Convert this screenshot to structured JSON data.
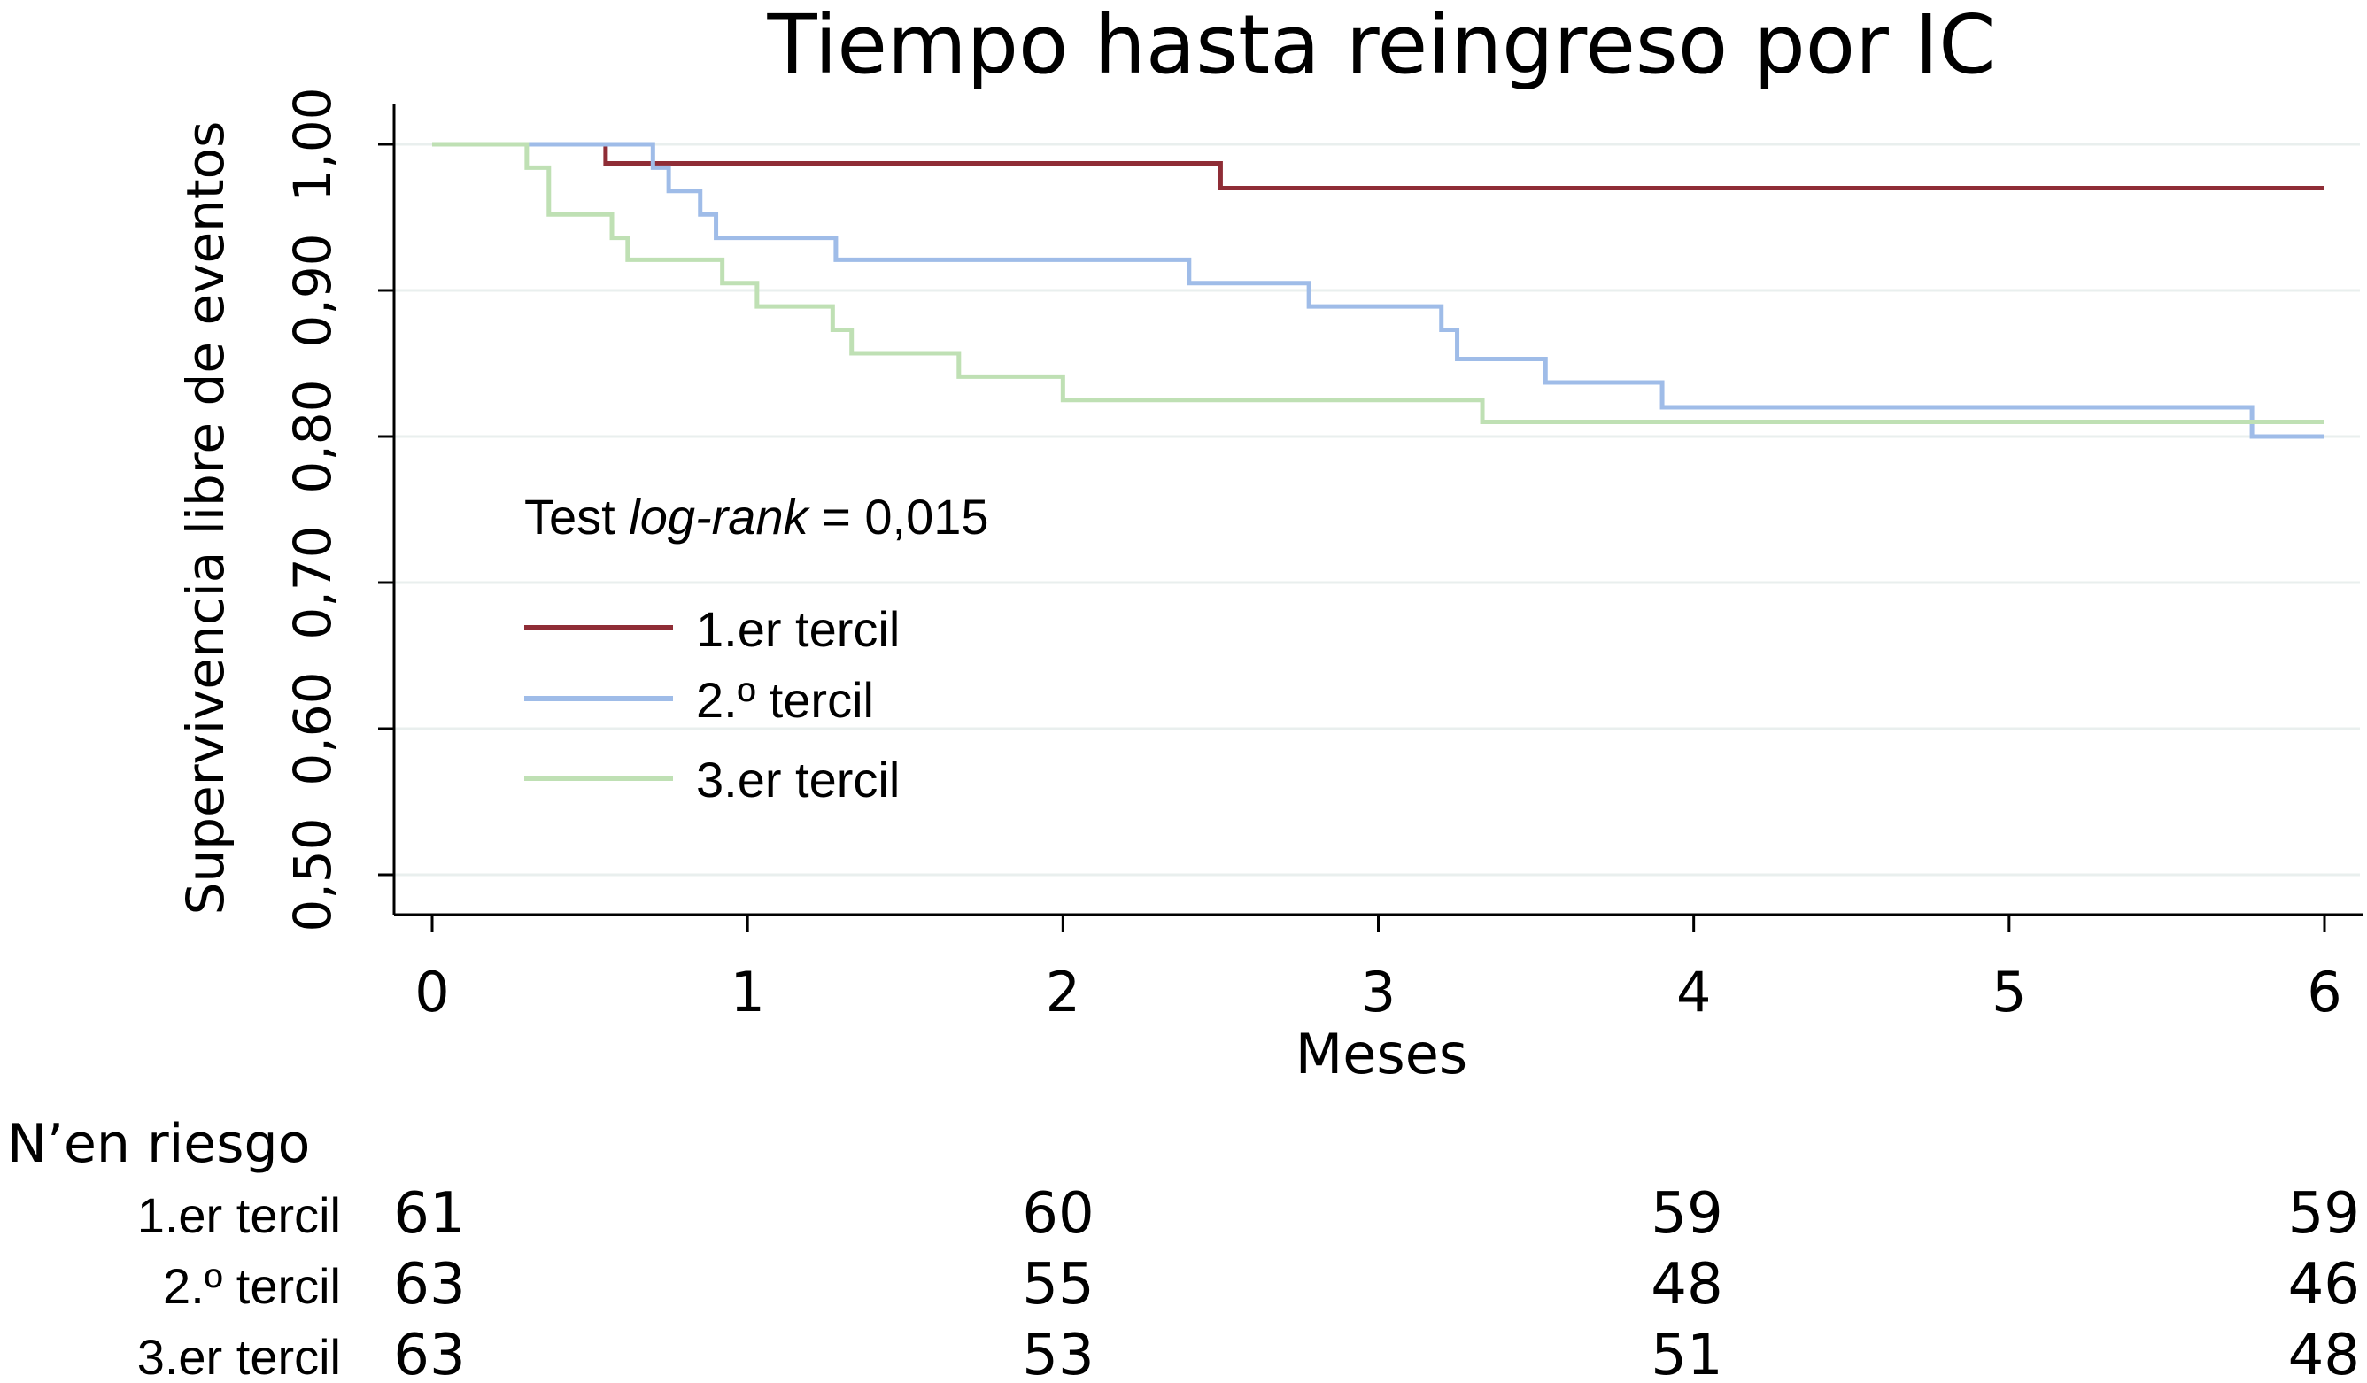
{
  "chart_data": {
    "type": "line",
    "title": "Tiempo hasta reingreso por IC",
    "xlabel": "Meses",
    "ylabel": "Supervivencia libre de eventos",
    "xlim": [
      0,
      6
    ],
    "ylim": [
      0.5,
      1.0
    ],
    "x_ticks": [
      "0",
      "1",
      "2",
      "3",
      "4",
      "5",
      "6"
    ],
    "y_ticks": [
      "0,50",
      "0,60",
      "0,70",
      "0,80",
      "0,90",
      "1,00"
    ],
    "grid": "horizontal",
    "legend_position": "center-left",
    "annotation": {
      "prefix": "Test ",
      "italic": "log-rank",
      "suffix": " = 0,015"
    },
    "series": [
      {
        "name": "1.er tercil",
        "color": "#8f2d36",
        "steps": [
          [
            0.0,
            1.0
          ],
          [
            0.55,
            0.987
          ],
          [
            2.5,
            0.97
          ],
          [
            6.0,
            0.97
          ]
        ]
      },
      {
        "name": "2.º tercil",
        "color": "#9fbce8",
        "steps": [
          [
            0.0,
            1.0
          ],
          [
            0.7,
            0.984
          ],
          [
            0.75,
            0.968
          ],
          [
            0.85,
            0.952
          ],
          [
            0.9,
            0.936
          ],
          [
            1.28,
            0.921
          ],
          [
            2.4,
            0.905
          ],
          [
            2.78,
            0.889
          ],
          [
            3.2,
            0.873
          ],
          [
            3.25,
            0.853
          ],
          [
            3.53,
            0.837
          ],
          [
            3.9,
            0.82
          ],
          [
            5.77,
            0.8
          ],
          [
            6.0,
            0.8
          ]
        ]
      },
      {
        "name": "3.er tercil",
        "color": "#bfe0b4",
        "steps": [
          [
            0.0,
            1.0
          ],
          [
            0.3,
            0.984
          ],
          [
            0.37,
            0.952
          ],
          [
            0.57,
            0.936
          ],
          [
            0.62,
            0.921
          ],
          [
            0.92,
            0.905
          ],
          [
            1.03,
            0.889
          ],
          [
            1.27,
            0.873
          ],
          [
            1.33,
            0.857
          ],
          [
            1.67,
            0.841
          ],
          [
            2.0,
            0.825
          ],
          [
            3.33,
            0.81
          ],
          [
            6.0,
            0.81
          ]
        ]
      }
    ],
    "risk_table": {
      "title": "Nʼen riesgo",
      "rows": [
        {
          "label": "1.er tercil",
          "values": [
            "61",
            "60",
            "59",
            "59"
          ]
        },
        {
          "label": "2.º tercil",
          "values": [
            "63",
            "55",
            "48",
            "46"
          ]
        },
        {
          "label": "3.er tercil",
          "values": [
            "63",
            "53",
            "51",
            "48"
          ]
        }
      ],
      "at_months": [
        0,
        2,
        4,
        6
      ]
    }
  }
}
